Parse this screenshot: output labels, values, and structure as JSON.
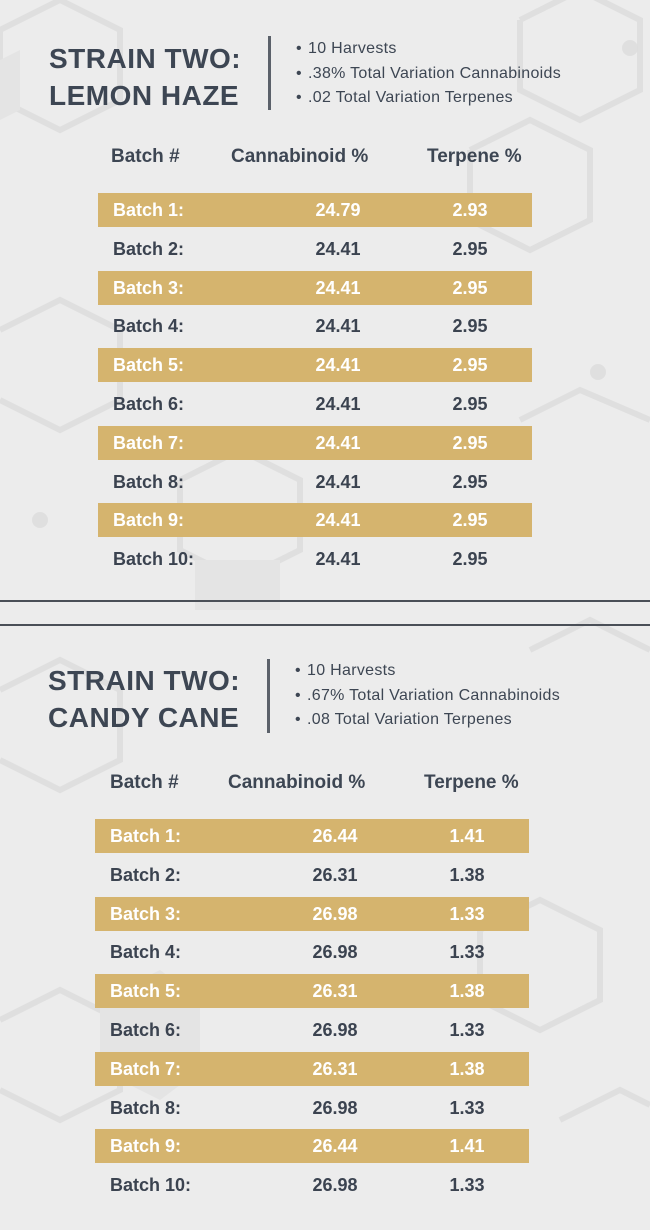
{
  "colors": {
    "background": "#ececec",
    "accent": "#d5b46e",
    "text": "#3d4653",
    "divider": "#4a4f57"
  },
  "strains": [
    {
      "title_line1": "STRAIN TWO:",
      "title_line2": "LEMON HAZE",
      "bullets": [
        "10 Harvests",
        ".38% Total Variation Cannabinoids",
        ".02 Total Variation Terpenes"
      ],
      "headers": [
        "Batch #",
        "Cannabinoid %",
        "Terpene %"
      ],
      "rows": [
        {
          "batch": "Batch 1:",
          "cannabinoid": "24.79",
          "terpene": "2.93"
        },
        {
          "batch": "Batch 2:",
          "cannabinoid": "24.41",
          "terpene": "2.95"
        },
        {
          "batch": "Batch 3:",
          "cannabinoid": "24.41",
          "terpene": "2.95"
        },
        {
          "batch": "Batch 4:",
          "cannabinoid": "24.41",
          "terpene": "2.95"
        },
        {
          "batch": "Batch 5:",
          "cannabinoid": "24.41",
          "terpene": "2.95"
        },
        {
          "batch": "Batch 6:",
          "cannabinoid": "24.41",
          "terpene": "2.95"
        },
        {
          "batch": "Batch 7:",
          "cannabinoid": "24.41",
          "terpene": "2.95"
        },
        {
          "batch": "Batch 8:",
          "cannabinoid": "24.41",
          "terpene": "2.95"
        },
        {
          "batch": "Batch 9:",
          "cannabinoid": "24.41",
          "terpene": "2.95"
        },
        {
          "batch": "Batch 10:",
          "cannabinoid": "24.41",
          "terpene": "2.95"
        }
      ]
    },
    {
      "title_line1": "STRAIN TWO:",
      "title_line2": "CANDY CANE",
      "bullets": [
        "10 Harvests",
        ".67% Total Variation Cannabinoids",
        ".08 Total Variation Terpenes"
      ],
      "headers": [
        "Batch #",
        "Cannabinoid %",
        "Terpene %"
      ],
      "rows": [
        {
          "batch": "Batch 1:",
          "cannabinoid": "26.44",
          "terpene": "1.41"
        },
        {
          "batch": "Batch 2:",
          "cannabinoid": "26.31",
          "terpene": "1.38"
        },
        {
          "batch": "Batch 3:",
          "cannabinoid": "26.98",
          "terpene": "1.33"
        },
        {
          "batch": "Batch 4:",
          "cannabinoid": "26.98",
          "terpene": "1.33"
        },
        {
          "batch": "Batch 5:",
          "cannabinoid": "26.31",
          "terpene": "1.38"
        },
        {
          "batch": "Batch 6:",
          "cannabinoid": "26.98",
          "terpene": "1.33"
        },
        {
          "batch": "Batch 7:",
          "cannabinoid": "26.31",
          "terpene": "1.38"
        },
        {
          "batch": "Batch 8:",
          "cannabinoid": "26.98",
          "terpene": "1.33"
        },
        {
          "batch": "Batch 9:",
          "cannabinoid": "26.44",
          "terpene": "1.41"
        },
        {
          "batch": "Batch 10:",
          "cannabinoid": "26.98",
          "terpene": "1.33"
        }
      ]
    }
  ]
}
